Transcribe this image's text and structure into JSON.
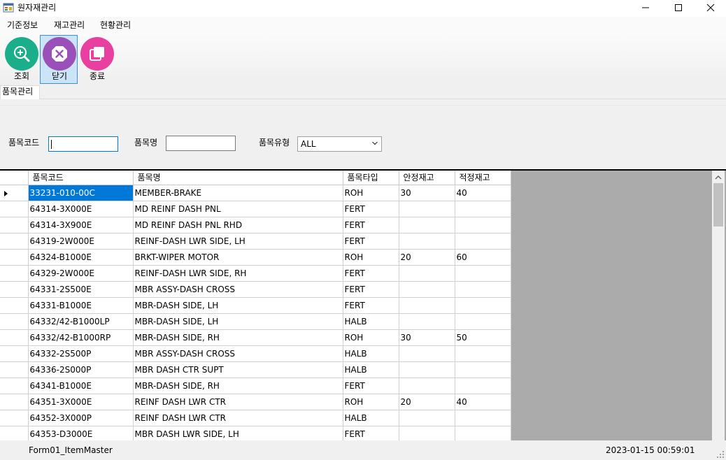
{
  "window": {
    "title": "원자재관리",
    "icon": "app-form-icon",
    "controls": [
      "minimize-icon",
      "maximize-icon",
      "close-icon"
    ]
  },
  "menu": [
    "기준정보",
    "재고관리",
    "현황관리"
  ],
  "toolbar": [
    {
      "label": "조회",
      "icon": "search-icon",
      "color": "#1aae8a"
    },
    {
      "label": "닫기",
      "icon": "close-circle-icon",
      "color": "#9b4fb8"
    },
    {
      "label": "종료",
      "icon": "windows-stack-icon",
      "color": "#e83fa0"
    }
  ],
  "tab": {
    "label": "품목관리"
  },
  "filters": {
    "code_label": "품목코드",
    "code_value": "",
    "name_label": "품목명",
    "name_value": "",
    "type_label": "품목유형",
    "type_value": "ALL"
  },
  "grid": {
    "columns": [
      "품목코드",
      "품목명",
      "품목타입",
      "안정재고",
      "적정재고"
    ],
    "rows": [
      [
        "33231-010-00C",
        "MEMBER-BRAKE",
        "ROH",
        "30",
        "40"
      ],
      [
        "64314-3X000E",
        "MD REINF DASH PNL",
        "FERT",
        "",
        ""
      ],
      [
        "64314-3X900E",
        "MD REINF DASH PNL RHD",
        "FERT",
        "",
        ""
      ],
      [
        "64319-2W000E",
        "REINF-DASH LWR SIDE, LH",
        "FERT",
        "",
        ""
      ],
      [
        "64324-B1000E",
        "BRKT-WIPER MOTOR",
        "ROH",
        "20",
        "60"
      ],
      [
        "64329-2W000E",
        "REINF-DASH LWR SIDE, RH",
        "FERT",
        "",
        ""
      ],
      [
        "64331-2S500E",
        "MBR ASSY-DASH CROSS",
        "FERT",
        "",
        ""
      ],
      [
        "64331-B1000E",
        "MBR-DASH SIDE, LH",
        "FERT",
        "",
        ""
      ],
      [
        "64332/42-B1000LP",
        "MBR-DASH SIDE, LH",
        "HALB",
        "",
        ""
      ],
      [
        "64332/42-B1000RP",
        "MBR-DASH SIDE, RH",
        "ROH",
        "30",
        "50"
      ],
      [
        "64332-2S500P",
        "MBR ASSY-DASH CROSS",
        "HALB",
        "",
        ""
      ],
      [
        "64336-2S000P",
        "MBR DASH CTR SUPT",
        "HALB",
        "",
        ""
      ],
      [
        "64341-B1000E",
        "MBR-DASH SIDE, RH",
        "FERT",
        "",
        ""
      ],
      [
        "64351-3X000E",
        "REINF DASH LWR CTR",
        "ROH",
        "20",
        "40"
      ],
      [
        "64352-3X000P",
        "REINF DASH LWR CTR",
        "HALB",
        "",
        ""
      ],
      [
        "64353-D3000E",
        "MBR DASH LWR SIDE, LH",
        "FERT",
        "",
        ""
      ]
    ]
  },
  "status": {
    "form_name": "Form01_ItemMaster",
    "datetime": "2023-01-15 00:59:01"
  }
}
